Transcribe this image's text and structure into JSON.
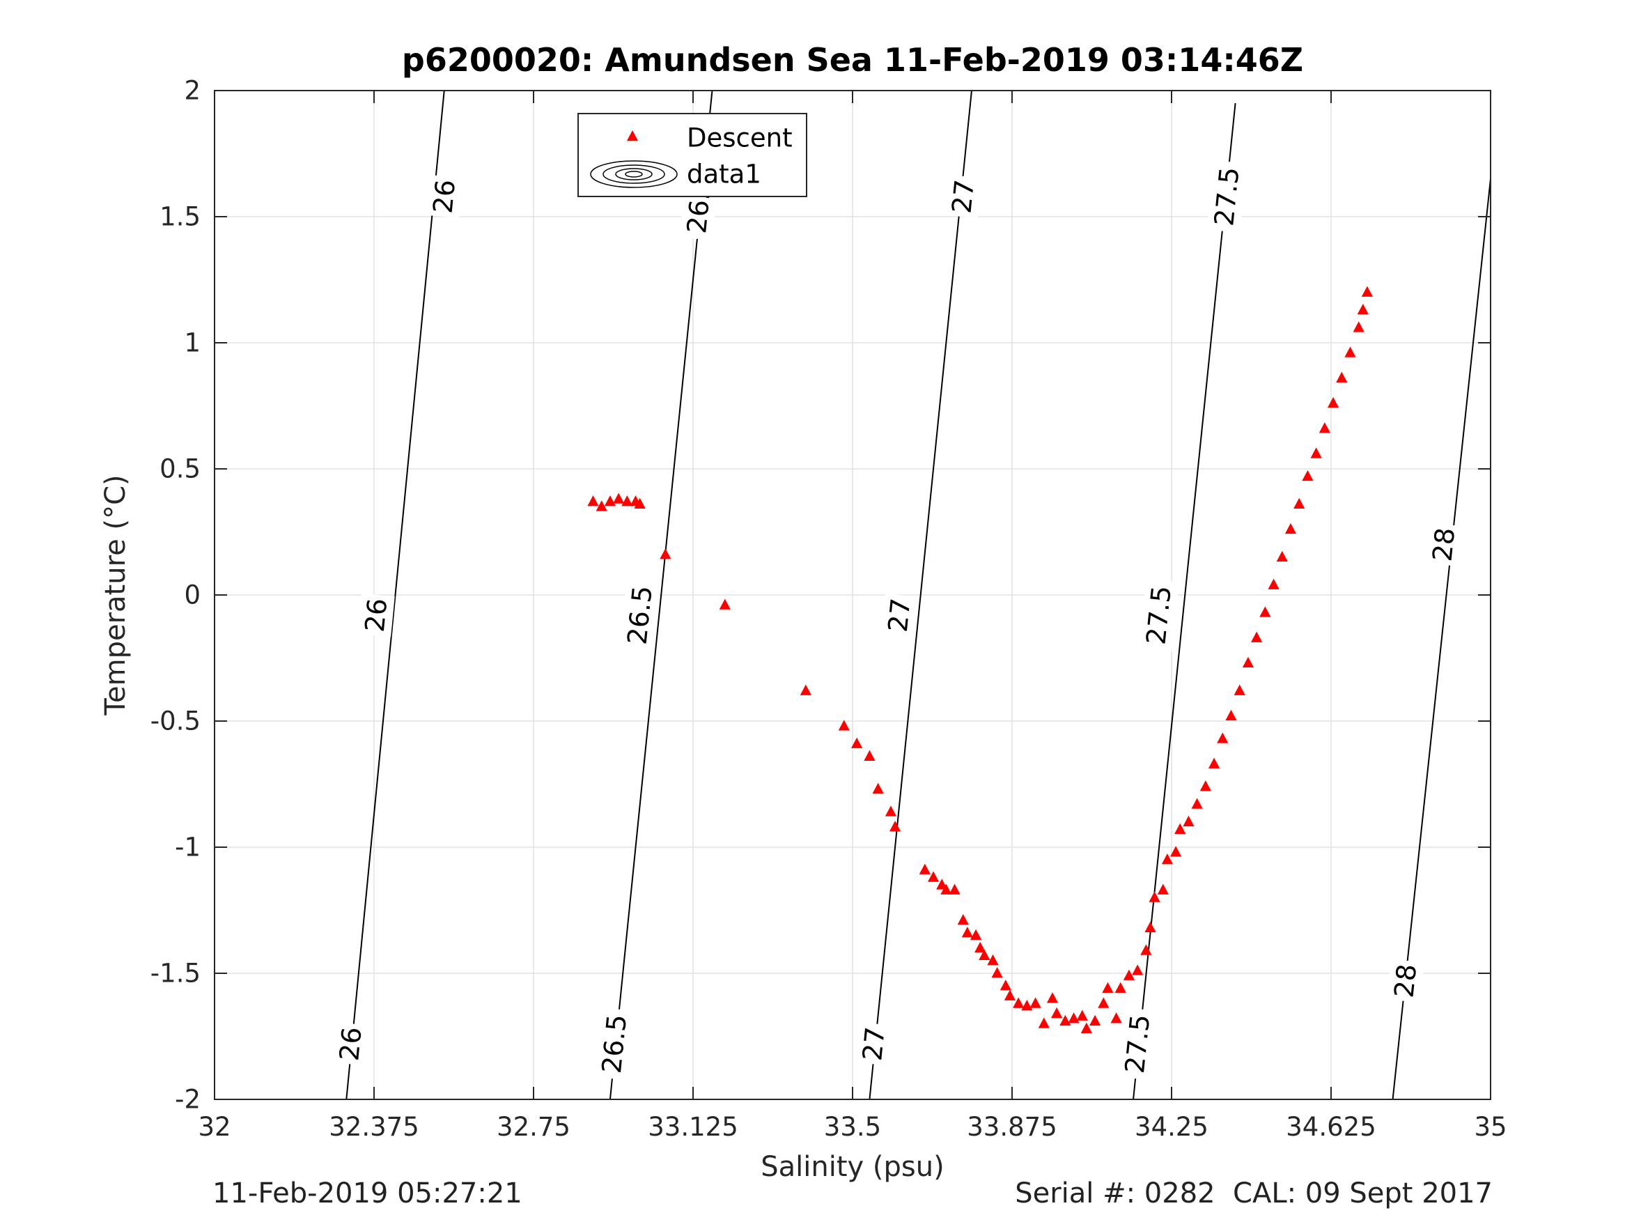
{
  "chart_data": {
    "type": "scatter",
    "title": "p6200020: Amundsen Sea 11-Feb-2019 03:14:46Z",
    "xlabel": "Salinity (psu)",
    "ylabel": "Temperature (°C)",
    "xlim": [
      32,
      35
    ],
    "ylim": [
      -2,
      2
    ],
    "x_ticks": [
      32,
      32.375,
      32.75,
      33.125,
      33.5,
      33.875,
      34.25,
      34.625,
      35
    ],
    "x_tick_labels": [
      "32",
      "32.375",
      "32.75",
      "33.125",
      "33.5",
      "33.875",
      "34.25",
      "34.625",
      "35"
    ],
    "y_ticks": [
      -2,
      -1.5,
      -1,
      -0.5,
      0,
      0.5,
      1,
      1.5,
      2
    ],
    "y_tick_labels": [
      "-2",
      "-1.5",
      "-1",
      "-0.5",
      "0",
      "0.5",
      "1",
      "1.5",
      "2"
    ],
    "grid": true,
    "legend_placement": "top-center",
    "legend": [
      {
        "label": "Descent",
        "marker": "triangle",
        "color": "#ff0000"
      },
      {
        "label": "data1",
        "marker": "contour",
        "color": "#000000"
      }
    ],
    "series": [
      {
        "name": "Descent",
        "color": "#ff0000",
        "marker": "triangle",
        "points": [
          [
            32.89,
            0.37
          ],
          [
            32.91,
            0.35
          ],
          [
            32.93,
            0.37
          ],
          [
            32.95,
            0.38
          ],
          [
            32.97,
            0.37
          ],
          [
            32.99,
            0.37
          ],
          [
            33.0,
            0.36
          ],
          [
            33.06,
            0.16
          ],
          [
            33.2,
            -0.04
          ],
          [
            33.39,
            -0.38
          ],
          [
            33.48,
            -0.52
          ],
          [
            33.51,
            -0.59
          ],
          [
            33.54,
            -0.64
          ],
          [
            33.56,
            -0.77
          ],
          [
            33.59,
            -0.86
          ],
          [
            33.6,
            -0.92
          ],
          [
            33.67,
            -1.09
          ],
          [
            33.69,
            -1.12
          ],
          [
            33.71,
            -1.15
          ],
          [
            33.72,
            -1.17
          ],
          [
            33.74,
            -1.17
          ],
          [
            33.76,
            -1.29
          ],
          [
            33.77,
            -1.34
          ],
          [
            33.79,
            -1.35
          ],
          [
            33.8,
            -1.4
          ],
          [
            33.81,
            -1.43
          ],
          [
            33.83,
            -1.45
          ],
          [
            33.84,
            -1.5
          ],
          [
            33.86,
            -1.55
          ],
          [
            33.87,
            -1.59
          ],
          [
            33.89,
            -1.62
          ],
          [
            33.91,
            -1.63
          ],
          [
            33.93,
            -1.62
          ],
          [
            33.95,
            -1.7
          ],
          [
            33.97,
            -1.6
          ],
          [
            33.98,
            -1.66
          ],
          [
            34.0,
            -1.69
          ],
          [
            34.02,
            -1.68
          ],
          [
            34.04,
            -1.67
          ],
          [
            34.05,
            -1.72
          ],
          [
            34.07,
            -1.69
          ],
          [
            34.09,
            -1.62
          ],
          [
            34.1,
            -1.56
          ],
          [
            34.12,
            -1.68
          ],
          [
            34.13,
            -1.56
          ],
          [
            34.15,
            -1.51
          ],
          [
            34.17,
            -1.49
          ],
          [
            34.19,
            -1.41
          ],
          [
            34.2,
            -1.32
          ],
          [
            34.21,
            -1.2
          ],
          [
            34.23,
            -1.17
          ],
          [
            34.24,
            -1.05
          ],
          [
            34.26,
            -1.02
          ],
          [
            34.27,
            -0.93
          ],
          [
            34.29,
            -0.9
          ],
          [
            34.31,
            -0.83
          ],
          [
            34.33,
            -0.76
          ],
          [
            34.35,
            -0.67
          ],
          [
            34.37,
            -0.57
          ],
          [
            34.39,
            -0.48
          ],
          [
            34.41,
            -0.38
          ],
          [
            34.43,
            -0.27
          ],
          [
            34.45,
            -0.17
          ],
          [
            34.47,
            -0.07
          ],
          [
            34.49,
            0.04
          ],
          [
            34.51,
            0.15
          ],
          [
            34.53,
            0.26
          ],
          [
            34.55,
            0.36
          ],
          [
            34.57,
            0.47
          ],
          [
            34.59,
            0.56
          ],
          [
            34.61,
            0.66
          ],
          [
            34.63,
            0.76
          ],
          [
            34.65,
            0.86
          ],
          [
            34.67,
            0.96
          ],
          [
            34.69,
            1.06
          ],
          [
            34.7,
            1.13
          ],
          [
            34.71,
            1.2
          ]
        ]
      },
      {
        "name": "data1",
        "type": "contour",
        "color": "#000000",
        "isopycnals": [
          {
            "level": "26",
            "bottom": [
              32.31,
              -2
            ],
            "top": [
              32.54,
              2
            ],
            "labels": [
              [
                32.54,
                1.58
              ],
              [
                32.38,
                -0.08
              ],
              [
                32.32,
                -1.78
              ]
            ]
          },
          {
            "level": "26.5",
            "bottom": [
              32.93,
              -2
            ],
            "top": [
              33.17,
              2
            ],
            "labels": [
              [
                33.14,
                1.55
              ],
              [
                33.0,
                -0.08
              ],
              [
                32.94,
                -1.78
              ]
            ]
          },
          {
            "level": "27",
            "bottom": [
              33.54,
              -2
            ],
            "top": [
              33.78,
              2
            ],
            "labels": [
              [
                33.76,
                1.58
              ],
              [
                33.61,
                -0.08
              ],
              [
                33.55,
                -1.78
              ]
            ]
          },
          {
            "level": "27.5",
            "bottom": [
              34.16,
              -2
            ],
            "top": [
              34.4,
              1.95
            ],
            "labels": [
              [
                34.38,
                1.58
              ],
              [
                34.22,
                -0.08
              ],
              [
                34.17,
                -1.78
              ]
            ]
          },
          {
            "level": "28",
            "bottom": [
              34.77,
              -2
            ],
            "top": [
              35,
              1.65
            ],
            "labels": [
              [
                34.89,
                0.2
              ],
              [
                34.8,
                -1.53
              ]
            ]
          }
        ]
      }
    ]
  },
  "footer": {
    "left": "11-Feb-2019 05:27:21",
    "right": "Serial #: 0282  CAL: 09 Sept 2017"
  }
}
